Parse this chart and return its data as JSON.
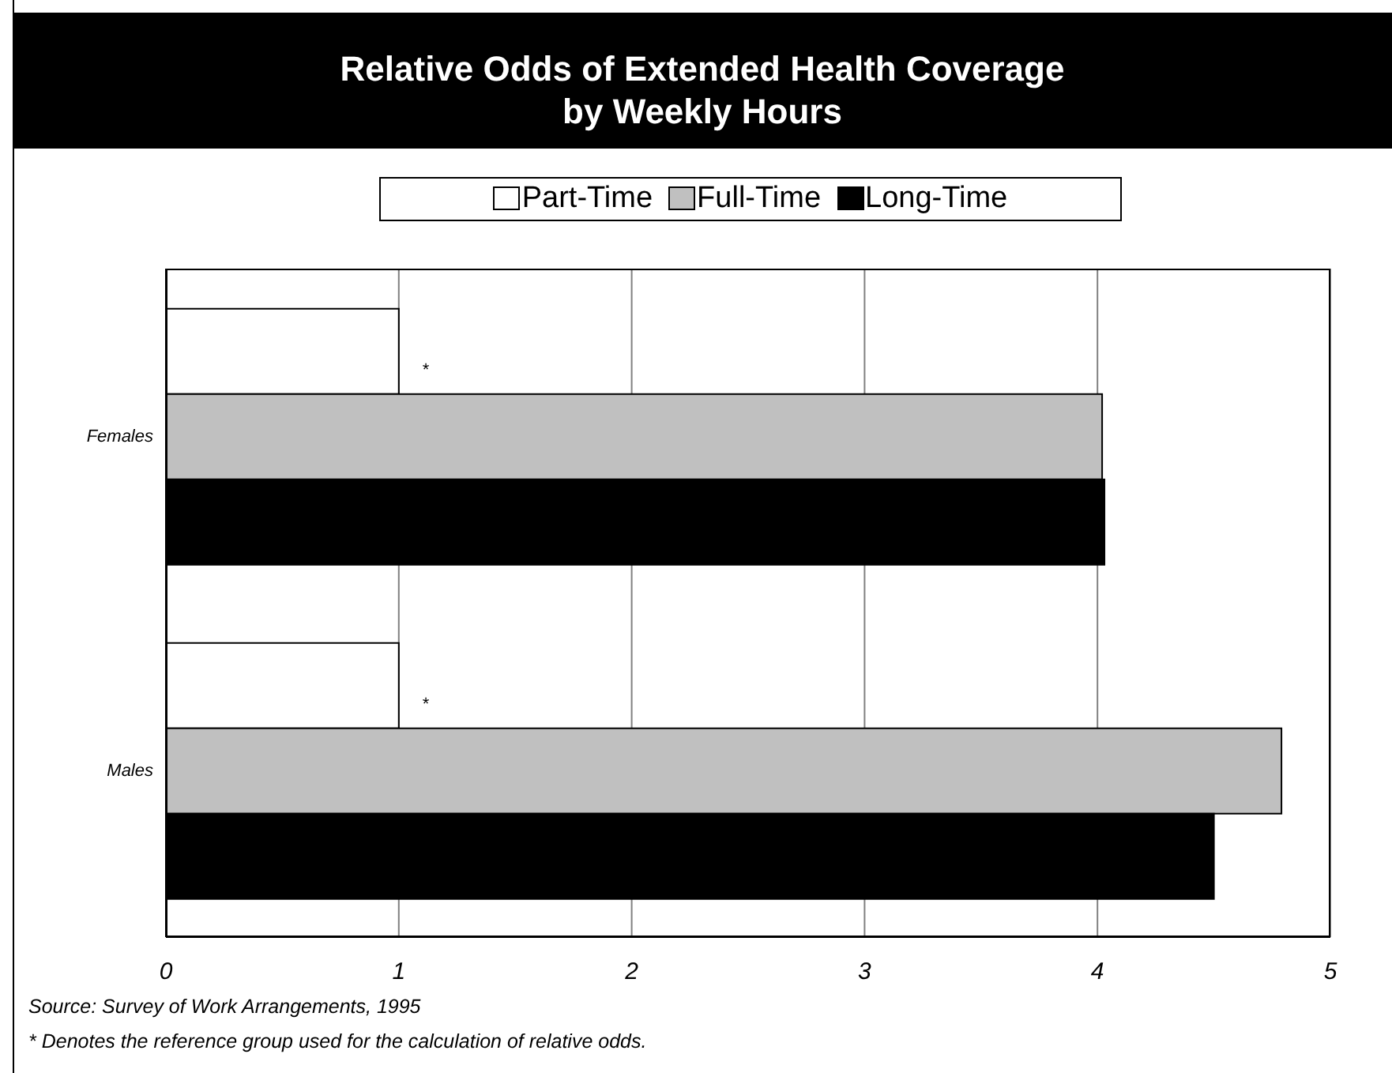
{
  "chart_data": {
    "type": "bar",
    "orientation": "horizontal",
    "title": "Relative Odds of Extended Health Coverage\nby Weekly Hours",
    "categories": [
      "Females",
      "Males"
    ],
    "series": [
      {
        "name": "Part-Time",
        "color": "#ffffff",
        "values": [
          1,
          1
        ]
      },
      {
        "name": "Full-Time",
        "color": "#c0c0c0",
        "values": [
          4.02,
          4.79
        ]
      },
      {
        "name": "Long-Time",
        "color": "#000000",
        "values": [
          4.03,
          4.5
        ]
      }
    ],
    "xlim": [
      0,
      5
    ],
    "xticks": [
      0,
      1,
      2,
      3,
      4,
      5
    ],
    "grid": "x",
    "legend": "top",
    "annotations": [
      "*",
      "*",
      "Source: Survey of Work Arrangements, 1995",
      "* Denotes the reference group used for the calculation of relative odds."
    ]
  }
}
